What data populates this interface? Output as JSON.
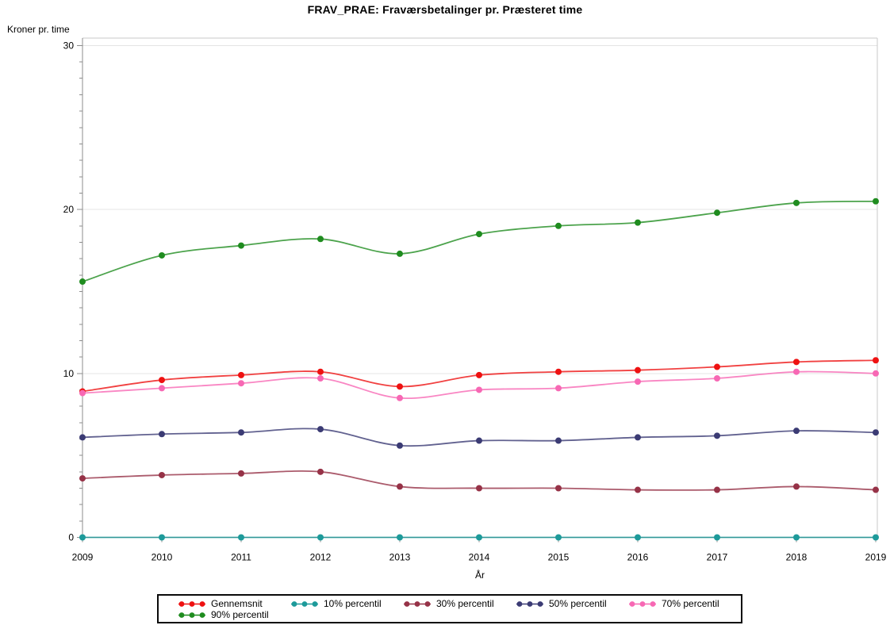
{
  "chart_data": {
    "type": "line",
    "title": "FRAV_PRAE: Fraværsbetalinger pr. Præsteret time",
    "xlabel": "År",
    "ylabel": "Kroner pr. time",
    "x": [
      2009,
      2010,
      2011,
      2012,
      2013,
      2014,
      2015,
      2016,
      2017,
      2018,
      2019
    ],
    "ylim": [
      0,
      30
    ],
    "yticks": [
      0,
      10,
      20,
      30
    ],
    "y_minor_tick_interval": 1,
    "grid": true,
    "legend_position": "bottom",
    "axis_color": "#8c8c8c",
    "grid_color": "#e4e4e4",
    "frame_color": "#c9c9c9",
    "text_color": "#000000",
    "series": [
      {
        "name": "Gennemsnit",
        "color": "#ee1111",
        "values": [
          8.9,
          9.6,
          9.9,
          10.1,
          9.2,
          9.9,
          10.1,
          10.2,
          10.4,
          10.7,
          10.8
        ]
      },
      {
        "name": "10% percentil",
        "color": "#1d9a9a",
        "values": [
          0,
          0,
          0,
          0,
          0,
          0,
          0,
          0,
          0,
          0,
          0
        ]
      },
      {
        "name": "30% percentil",
        "color": "#963247",
        "values": [
          3.6,
          3.8,
          3.9,
          4.0,
          3.1,
          3.0,
          3.0,
          2.9,
          2.9,
          3.1,
          2.9
        ]
      },
      {
        "name": "50% percentil",
        "color": "#3b3b74",
        "values": [
          6.1,
          6.3,
          6.4,
          6.6,
          5.6,
          5.9,
          5.9,
          6.1,
          6.2,
          6.5,
          6.4
        ]
      },
      {
        "name": "70% percentil",
        "color": "#f768b4",
        "values": [
          8.8,
          9.1,
          9.4,
          9.7,
          8.5,
          9.0,
          9.1,
          9.5,
          9.7,
          10.1,
          10.0
        ]
      },
      {
        "name": "90% percentil",
        "color": "#1f8c1f",
        "values": [
          15.6,
          17.2,
          17.8,
          18.2,
          17.3,
          18.5,
          19.0,
          19.2,
          19.8,
          20.4,
          20.5
        ]
      }
    ]
  }
}
